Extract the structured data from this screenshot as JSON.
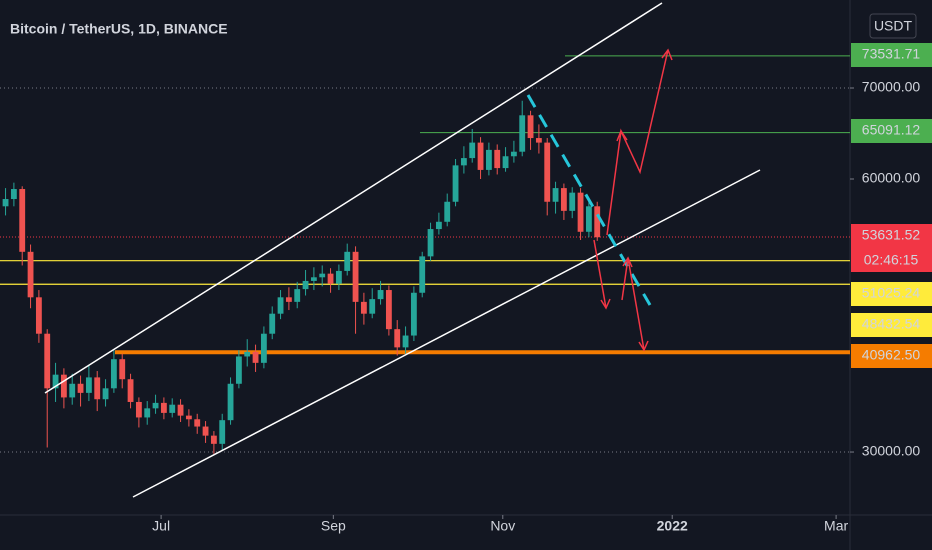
{
  "chart_data": {
    "type": "candlestick",
    "title": "Bitcoin / TetherUS, 1D, BINANCE",
    "currency": "USDT",
    "countdown": "02:46:15",
    "x": [
      2,
      5,
      8,
      11,
      14,
      17,
      20,
      23,
      26,
      29,
      32,
      35,
      38,
      41,
      44,
      47,
      50,
      53,
      56,
      59,
      62,
      65,
      68,
      71,
      74,
      77,
      80,
      83,
      86,
      89,
      92,
      95,
      98,
      101,
      104,
      107,
      110,
      113,
      116,
      119,
      122,
      125,
      128,
      131,
      134,
      137,
      140,
      143,
      146,
      149,
      152,
      155,
      158,
      161,
      164,
      167,
      170,
      173,
      176,
      179,
      182,
      185,
      188,
      191,
      194,
      197,
      200,
      203,
      206,
      209,
      212,
      215
    ],
    "open": [
      57000,
      57800,
      58900,
      52000,
      47000,
      43000,
      37000,
      38500,
      36000,
      37500,
      36500,
      38200,
      35800,
      37000,
      40200,
      38000,
      35500,
      33800,
      34800,
      35400,
      34300,
      35200,
      34000,
      33600,
      32800,
      31800,
      30900,
      33500,
      37500,
      40500,
      41000,
      39800,
      43000,
      45200,
      47000,
      46500,
      47900,
      48800,
      49200,
      49600,
      48500,
      49900,
      52000,
      46500,
      45200,
      46800,
      47800,
      43500,
      41500,
      42800,
      47500,
      51500,
      54500,
      55300,
      57500,
      61500,
      62300,
      64000,
      61000,
      63200,
      61200,
      62500,
      63000,
      67000,
      64500,
      64000,
      57500,
      59000,
      56500,
      58500,
      54200,
      57000
    ],
    "high": [
      59000,
      59600,
      59200,
      52800,
      47800,
      43500,
      39800,
      39200,
      38600,
      38400,
      39500,
      38900,
      38000,
      41300,
      40800,
      38600,
      36000,
      35600,
      36300,
      36000,
      35900,
      35800,
      34700,
      34200,
      33400,
      32300,
      34200,
      38200,
      41200,
      42400,
      41800,
      43800,
      46000,
      47800,
      48100,
      48700,
      50000,
      50300,
      50500,
      50200,
      50600,
      52900,
      52600,
      47500,
      48000,
      48800,
      48300,
      44500,
      43800,
      48200,
      52000,
      55200,
      56300,
      58400,
      62200,
      63600,
      65500,
      64600,
      64000,
      63800,
      63500,
      64200,
      68600,
      67500,
      66000,
      64500,
      59700,
      59500,
      59100,
      59000,
      57700,
      57500
    ],
    "low": [
      56000,
      57000,
      50500,
      45800,
      42000,
      30500,
      35500,
      34800,
      35200,
      35000,
      35600,
      34500,
      35000,
      36500,
      37000,
      34800,
      32700,
      33000,
      34200,
      33600,
      33800,
      33300,
      32800,
      32000,
      31000,
      29800,
      30200,
      33000,
      37000,
      39400,
      38800,
      39200,
      42400,
      44600,
      45600,
      45800,
      47200,
      47800,
      48200,
      47500,
      47800,
      49400,
      43000,
      44000,
      44700,
      46200,
      42800,
      40600,
      40800,
      42200,
      47000,
      51000,
      53900,
      54800,
      57000,
      60600,
      61800,
      60000,
      60400,
      60500,
      60800,
      61800,
      62500,
      63200,
      62800,
      56000,
      56200,
      55500,
      55700,
      53300,
      53600,
      53200
    ],
    "close": [
      57800,
      58900,
      52000,
      47000,
      43000,
      37000,
      38500,
      36000,
      37500,
      36500,
      38200,
      35800,
      37000,
      40200,
      38000,
      35500,
      33800,
      34800,
      35400,
      34300,
      35200,
      34000,
      33600,
      32800,
      31800,
      30900,
      33500,
      37500,
      40500,
      41000,
      39800,
      43000,
      45200,
      47000,
      46500,
      47900,
      48800,
      49200,
      49600,
      48500,
      49900,
      52000,
      46500,
      45200,
      46800,
      47800,
      43500,
      41500,
      42800,
      47500,
      51500,
      54500,
      55300,
      57500,
      61500,
      62300,
      64000,
      61000,
      63200,
      61200,
      62500,
      63000,
      67000,
      64500,
      64000,
      57500,
      59000,
      56500,
      58500,
      54200,
      57000,
      53600
    ],
    "up_color": "#26a69a",
    "down_color": "#ef5350",
    "xlim": [
      0,
      306
    ],
    "xticks": [
      {
        "value": 58,
        "label": "Jul"
      },
      {
        "value": 120,
        "label": "Sep"
      },
      {
        "value": 181,
        "label": "Nov"
      },
      {
        "value": 242,
        "label": "2022"
      },
      {
        "value": 301,
        "label": "Mar"
      }
    ],
    "ylim": [
      23080,
      79670
    ],
    "yticks": [
      {
        "value": 70000,
        "label": "70000.00"
      },
      {
        "value": 60000,
        "label": "60000.00"
      },
      {
        "value": 30000,
        "label": "30000.00"
      }
    ],
    "grid_ticks": [
      {
        "value": 70000,
        "label": "70000.00"
      },
      {
        "value": 30000,
        "label": "30000.00"
      }
    ],
    "levels": [
      {
        "value": 73531.71,
        "label": "73531.71",
        "color": "#4caf50"
      },
      {
        "value": 65091.12,
        "label": "65091.12",
        "color": "#4caf50"
      },
      {
        "value": 53631.52,
        "label": "53631.52",
        "color": "#f23645"
      },
      {
        "value": 51025.24,
        "label": "51025.24",
        "color": "#ffeb3b"
      },
      {
        "value": 48432.54,
        "label": "48432.54",
        "color": "#ffeb3b"
      },
      {
        "value": 40962.5,
        "label": "40962.50",
        "color": "#f57c00"
      }
    ]
  }
}
